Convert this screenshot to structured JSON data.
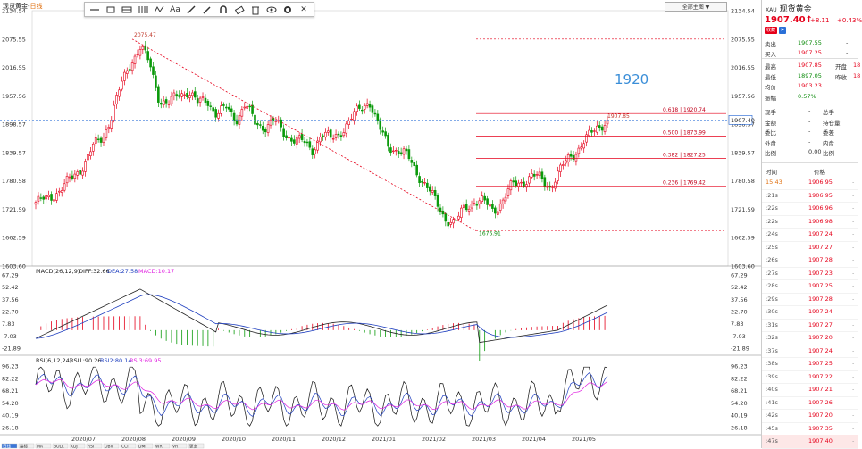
{
  "chart_title": {
    "name": "现货黄金",
    "period": "日线"
  },
  "toolbar": {
    "items": [
      "line-tool-icon",
      "rect-tool-icon",
      "channel-tool-icon",
      "fib-tool-icon",
      "pattern-tool-icon",
      "pen-tool-icon",
      "brush-tool-icon",
      "magnet-tool-icon",
      "eraser-tool-icon",
      "delete-tool-icon",
      "eye-tool-icon",
      "settings-tool-icon",
      "close-icon"
    ],
    "text_tool": "Aa"
  },
  "top_right": {
    "dropdown": "全部主图 ▼",
    "icons": [
      "gear-icon",
      "fullscreen-icon",
      "window-icon"
    ]
  },
  "main_axis_labels": [
    "2134.54",
    "2075.55",
    "2016.55",
    "1957.56",
    "1898.57",
    "1839.57",
    "1780.58",
    "1721.59",
    "1662.59",
    "1603.60"
  ],
  "current_price_label": "1907.40",
  "annotation_big": "1920",
  "peak_label": "2075.47",
  "low_label": "1676.91",
  "last_high_label": "1907.85",
  "fib_levels": [
    {
      "label": "0.618 | 1920.74",
      "value": 1920.74
    },
    {
      "label": "0.500 | 1873.99",
      "value": 1873.99
    },
    {
      "label": "0.382 | 1827.25",
      "value": 1827.25
    },
    {
      "label": "0.236 | 1769.42",
      "value": 1769.42
    }
  ],
  "macd": {
    "title": "MACD(26,12,9)",
    "diff": "DIFF:32.66",
    "dea": "DEA:27.58",
    "macd": "MACD:10.17",
    "axis_labels": [
      "67.29",
      "52.42",
      "37.56",
      "22.70",
      "7.83",
      "-7.03",
      "-21.89"
    ]
  },
  "rsi": {
    "title": "RSI(6,12,24)",
    "r1": "RSI1:90.26",
    "r2": "RSI2:80.14",
    "r3": "RSI3:69.95",
    "axis_labels": [
      "96.23",
      "82.22",
      "68.21",
      "54.20",
      "40.19",
      "26.18"
    ]
  },
  "x_axis": [
    "2020/07",
    "2020/08",
    "2020/09",
    "2020/10",
    "2020/11",
    "2020/12",
    "2021/01",
    "2021/02",
    "2021/03",
    "2021/04",
    "2021/05"
  ],
  "bottom_tabs": [
    "日线",
    "指标",
    "MA",
    "BOLL",
    "KDJ",
    "RSI",
    "OBV",
    "CCI",
    "DMI",
    "WR",
    "VR",
    "更多"
  ],
  "side": {
    "code": "XAU",
    "name": "现货黄金",
    "price": "1907.40",
    "arrow": "↑",
    "change": "+8.11",
    "change_pct": "+0.43%",
    "badges": [
      "收藏",
      "⚑"
    ],
    "sell": {
      "label": "卖出",
      "value": "1907.55",
      "extra": "-"
    },
    "buy": {
      "label": "买入",
      "value": "1907.25",
      "extra": "-"
    },
    "stats": [
      {
        "label": "最高",
        "value": "1907.85",
        "label2": "开盘",
        "value2": "18"
      },
      {
        "label": "最低",
        "value": "1897.05",
        "label2": "昨收",
        "value2": "18"
      },
      {
        "label": "均价",
        "value": "1903.23",
        "label2": "",
        "value2": ""
      },
      {
        "label": "振幅",
        "value": "0.57%",
        "label2": "",
        "value2": ""
      }
    ],
    "vols": [
      {
        "label": "现手",
        "value": "-",
        "label2": "总手"
      },
      {
        "label": "金额",
        "value": "-",
        "label2": "持仓量"
      },
      {
        "label": "委比",
        "value": "-",
        "label2": "委差"
      },
      {
        "label": "外盘",
        "value": "-",
        "label2": "内盘"
      },
      {
        "label": "比例",
        "value": "0.00",
        "label2": "比例"
      }
    ],
    "ticks_header": {
      "time": "时间",
      "price": "价格"
    },
    "ticks": [
      {
        "t": "15:43",
        "p": "1906.95"
      },
      {
        "t": ":21s",
        "p": "1906.95"
      },
      {
        "t": ":22s",
        "p": "1906.96"
      },
      {
        "t": ":22s",
        "p": "1906.98"
      },
      {
        "t": ":24s",
        "p": "1907.24"
      },
      {
        "t": ":25s",
        "p": "1907.27"
      },
      {
        "t": ":26s",
        "p": "1907.28"
      },
      {
        "t": ":27s",
        "p": "1907.23"
      },
      {
        "t": ":28s",
        "p": "1907.25"
      },
      {
        "t": ":29s",
        "p": "1907.28"
      },
      {
        "t": ":30s",
        "p": "1907.24"
      },
      {
        "t": ":31s",
        "p": "1907.27"
      },
      {
        "t": ":32s",
        "p": "1907.20"
      },
      {
        "t": ":37s",
        "p": "1907.24"
      },
      {
        "t": ":38s",
        "p": "1907.25"
      },
      {
        "t": ":39s",
        "p": "1907.22"
      },
      {
        "t": ":40s",
        "p": "1907.21"
      },
      {
        "t": ":41s",
        "p": "1907.26"
      },
      {
        "t": ":42s",
        "p": "1907.20"
      },
      {
        "t": ":45s",
        "p": "1907.35"
      },
      {
        "t": ":47s",
        "p": "1907.40"
      }
    ]
  },
  "colors": {
    "up": "#e5001a",
    "down": "#0a9a0a",
    "macd_diff": "#222222",
    "macd_dea": "#1f3fbf",
    "rsi3": "#e020e0",
    "fib": "#e5001a",
    "trend": "#e5001a",
    "cur_line": "#5a8fe0"
  },
  "chart_data": {
    "type": "candlestick",
    "price_axis": [
      1603.6,
      2134.54
    ],
    "notes": [
      "2075.47",
      "1676.91",
      "1907.85"
    ],
    "approx_closes": [
      1736,
      1740,
      1755,
      1770,
      1790,
      1815,
      1850,
      1870,
      1920,
      1980,
      2030,
      2060,
      2020,
      1950,
      1940,
      1960,
      1970,
      1940,
      1950,
      1920,
      1930,
      1910,
      1940,
      1900,
      1895,
      1905,
      1880,
      1870,
      1860,
      1845,
      1880,
      1865,
      1885,
      1905,
      1930,
      1950,
      1890,
      1855,
      1845,
      1830,
      1800,
      1770,
      1735,
      1705,
      1690,
      1725,
      1740,
      1735,
      1720,
      1740,
      1770,
      1780,
      1790,
      1785,
      1770,
      1800,
      1830,
      1850,
      1870,
      1895,
      1907.4
    ]
  }
}
